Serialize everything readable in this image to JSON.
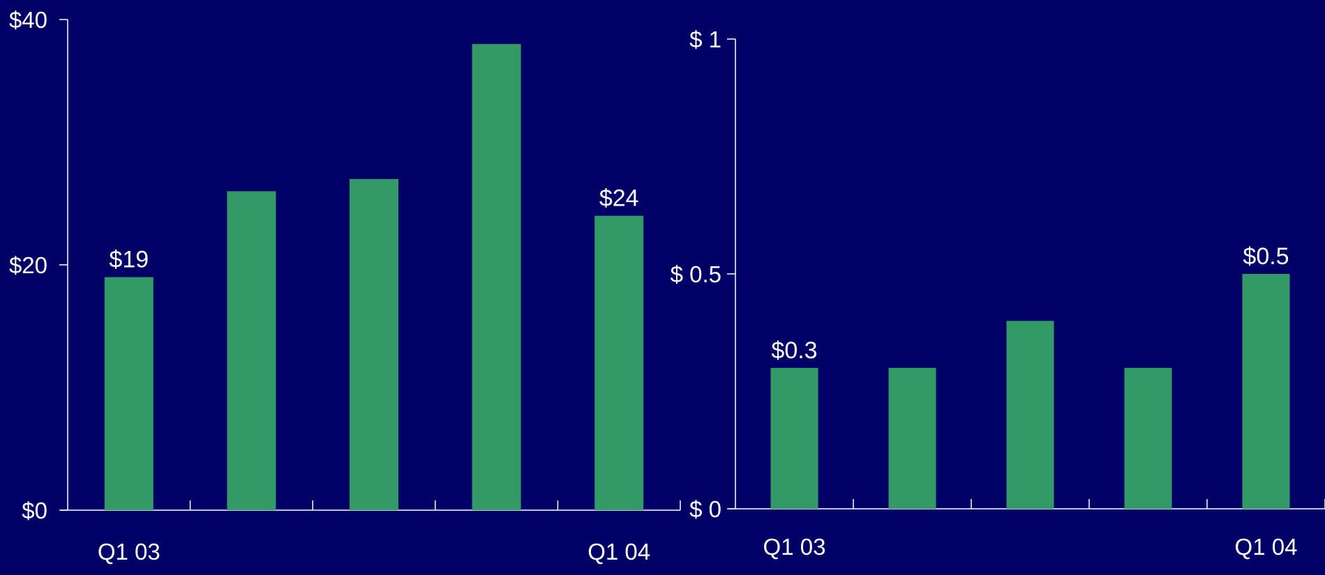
{
  "colors": {
    "background": "#000066",
    "bar": "#339966",
    "axis": "#ffffff",
    "text": "#ffffff"
  },
  "chart_data": [
    {
      "type": "bar",
      "categories": [
        "Q1 03",
        "",
        "",
        "",
        "Q1 04"
      ],
      "values": [
        19,
        26,
        27,
        38,
        24
      ],
      "ylim": [
        0,
        40
      ],
      "yticks": [
        0,
        20,
        40
      ],
      "ytick_labels": [
        "$0",
        "$20",
        "$40"
      ],
      "data_labels": [
        "$19",
        "",
        "",
        "",
        "$24"
      ],
      "title": "",
      "xlabel": "",
      "ylabel": "",
      "grid": false
    },
    {
      "type": "bar",
      "categories": [
        "Q1 03",
        "",
        "",
        "",
        "Q1 04"
      ],
      "values": [
        0.3,
        0.3,
        0.4,
        0.3,
        0.5
      ],
      "ylim": [
        0,
        1
      ],
      "yticks": [
        0,
        0.5,
        1
      ],
      "ytick_labels": [
        "$ 0",
        "$ 0.5",
        "$ 1"
      ],
      "data_labels": [
        "$0.3",
        "",
        "",
        "",
        "$0.5"
      ],
      "title": "",
      "xlabel": "",
      "ylabel": "",
      "grid": false
    }
  ]
}
